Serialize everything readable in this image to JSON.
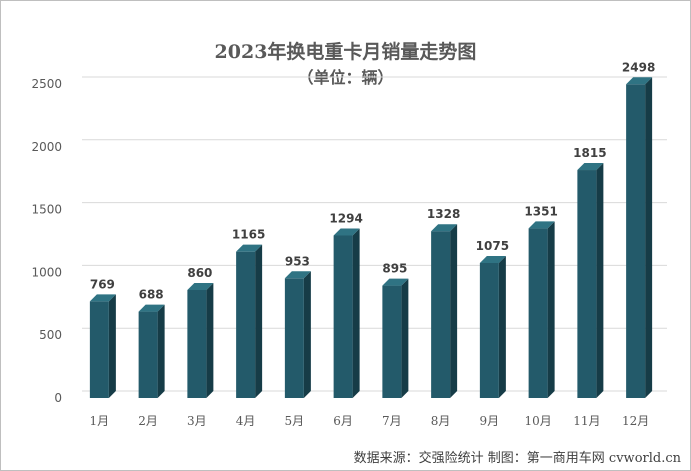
{
  "chart_data": {
    "type": "bar",
    "title": "2023年换电重卡月销量走势图",
    "subtitle": "（单位：辆）",
    "categories": [
      "1月",
      "2月",
      "3月",
      "4月",
      "5月",
      "6月",
      "7月",
      "8月",
      "9月",
      "10月",
      "11月",
      "12月"
    ],
    "values": [
      769,
      688,
      860,
      1165,
      953,
      1294,
      895,
      1328,
      1075,
      1351,
      1815,
      2498
    ],
    "ylim": [
      0,
      2500
    ],
    "yticks": [
      0,
      500,
      1000,
      1500,
      2000,
      2500
    ],
    "grid": true,
    "legend": "none",
    "colors": {
      "bar_front": "#235a6a",
      "bar_side": "#163c47",
      "bar_top": "#2f7383",
      "grid": "#d9d9d9"
    }
  },
  "footer": "数据来源：交强险统计 制图：第一商用车网 cvworld.cn"
}
